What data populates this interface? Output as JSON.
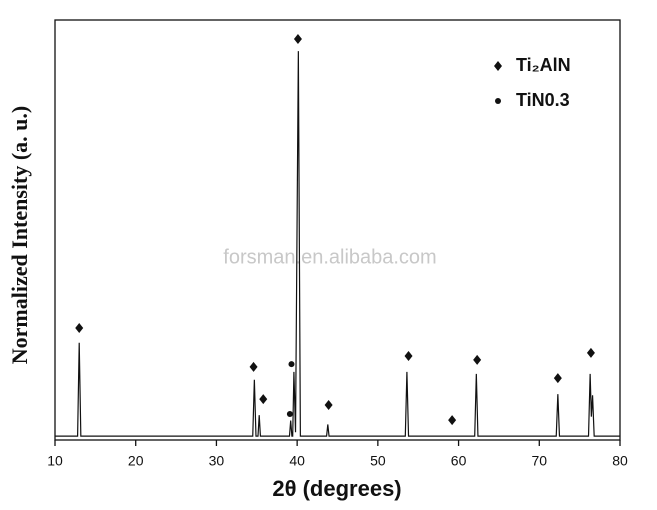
{
  "chart_data": {
    "type": "line",
    "xlabel": "2θ (degrees)",
    "ylabel": "Normalized Intensity (a. u.)",
    "watermark": "forsman.en.alibaba.com",
    "xlim": [
      10,
      80
    ],
    "xticks": [
      10,
      20,
      30,
      40,
      50,
      60,
      70,
      80
    ],
    "ylim": [
      0,
      1.08
    ],
    "x": [
      10,
      12.8,
      13.0,
      13.2,
      34.5,
      34.7,
      34.9,
      35.15,
      35.3,
      35.45,
      39.05,
      39.2,
      39.35,
      39.45,
      39.6,
      39.8,
      40.15,
      40.4,
      43.65,
      43.8,
      43.95,
      53.4,
      53.6,
      53.8,
      62.0,
      62.2,
      62.4,
      72.1,
      72.3,
      72.5,
      76.1,
      76.3,
      76.45,
      76.6,
      76.8,
      80
    ],
    "series": [
      {
        "color": "#111111",
        "values": [
          0.01,
          0.01,
          0.25,
          0.01,
          0.01,
          0.155,
          0.01,
          0.01,
          0.064,
          0.01,
          0.01,
          0.05,
          0.01,
          0.01,
          0.175,
          0.02,
          1.0,
          0.01,
          0.01,
          0.04,
          0.01,
          0.01,
          0.175,
          0.01,
          0.01,
          0.17,
          0.01,
          0.01,
          0.118,
          0.01,
          0.01,
          0.17,
          0.06,
          0.115,
          0.01,
          0.01
        ]
      }
    ],
    "phases": [
      {
        "name": "Ti₂AlN",
        "symbol": "diamond",
        "x": [
          13.0,
          34.6,
          35.8,
          40.1,
          43.9,
          53.8,
          59.2,
          62.3,
          72.3,
          76.4
        ],
        "y": [
          0.288,
          0.188,
          0.105,
          1.031,
          0.09,
          0.216,
          0.051,
          0.206,
          0.159,
          0.224
        ]
      },
      {
        "name": "TiN0.3",
        "symbol": "dot",
        "x": [
          39.3,
          39.1
        ],
        "y": [
          0.195,
          0.067
        ]
      }
    ]
  }
}
